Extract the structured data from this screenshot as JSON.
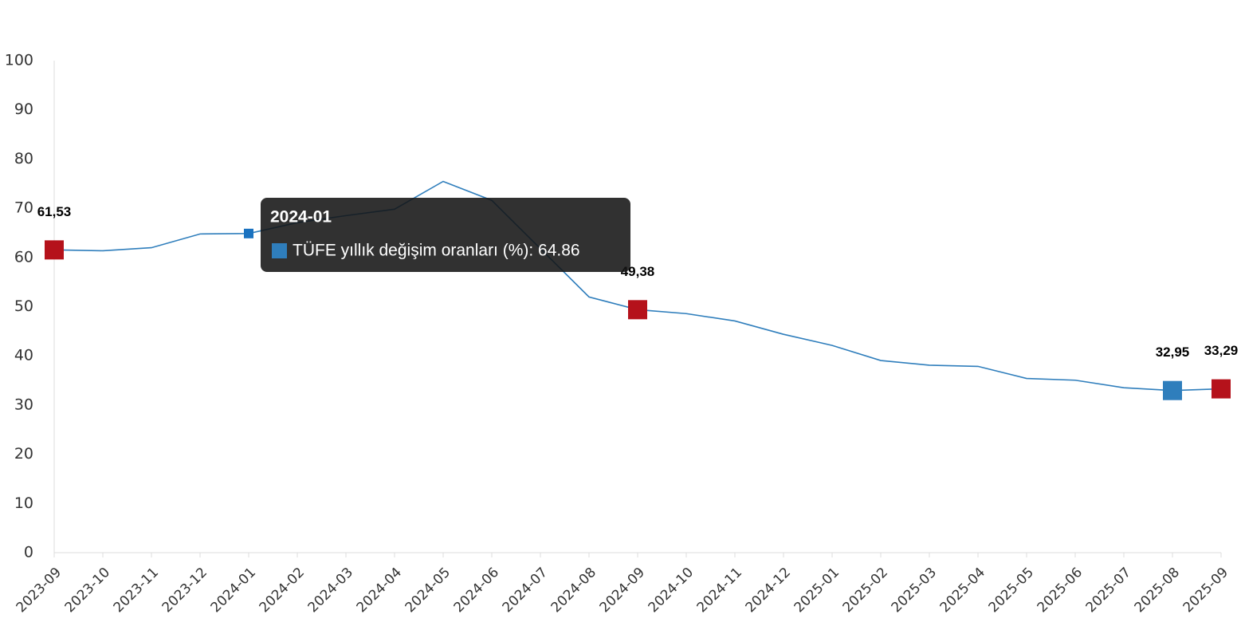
{
  "chart_data": {
    "type": "line",
    "categories": [
      "2023-09",
      "2023-10",
      "2023-11",
      "2023-12",
      "2024-01",
      "2024-02",
      "2024-03",
      "2024-04",
      "2024-05",
      "2024-06",
      "2024-07",
      "2024-08",
      "2024-09",
      "2024-10",
      "2024-11",
      "2024-12",
      "2025-01",
      "2025-02",
      "2025-03",
      "2025-04",
      "2025-05",
      "2025-06",
      "2025-07",
      "2025-08",
      "2025-09"
    ],
    "series": [
      {
        "name": "TÜFE yıllık değişim oranları (%)",
        "color": "#2f7ebc",
        "values": [
          61.53,
          61.36,
          61.98,
          64.77,
          64.86,
          67.07,
          68.5,
          69.8,
          75.45,
          71.6,
          61.78,
          51.97,
          49.38,
          48.58,
          47.09,
          44.38,
          42.12,
          39.05,
          38.1,
          37.86,
          35.41,
          35.05,
          33.52,
          32.95,
          33.29
        ],
        "value_labels": [
          "61,53",
          null,
          null,
          null,
          null,
          null,
          null,
          null,
          null,
          null,
          null,
          null,
          "49,38",
          null,
          null,
          null,
          null,
          null,
          null,
          null,
          null,
          null,
          null,
          "32,95",
          "33,29"
        ]
      }
    ],
    "markers": [
      {
        "index": 0,
        "color": "#b5121b"
      },
      {
        "index": 12,
        "color": "#b5121b"
      },
      {
        "index": 23,
        "color": "#2f7ebc"
      },
      {
        "index": 24,
        "color": "#b5121b"
      }
    ],
    "ylim": [
      0,
      100
    ],
    "yticks": [
      0,
      10,
      20,
      30,
      40,
      50,
      60,
      70,
      80,
      90,
      100
    ],
    "grid": false,
    "tooltip": {
      "index": 4,
      "title": "2024-01",
      "text": "TÜFE yıllık değişim oranları (%): 64.86"
    }
  }
}
